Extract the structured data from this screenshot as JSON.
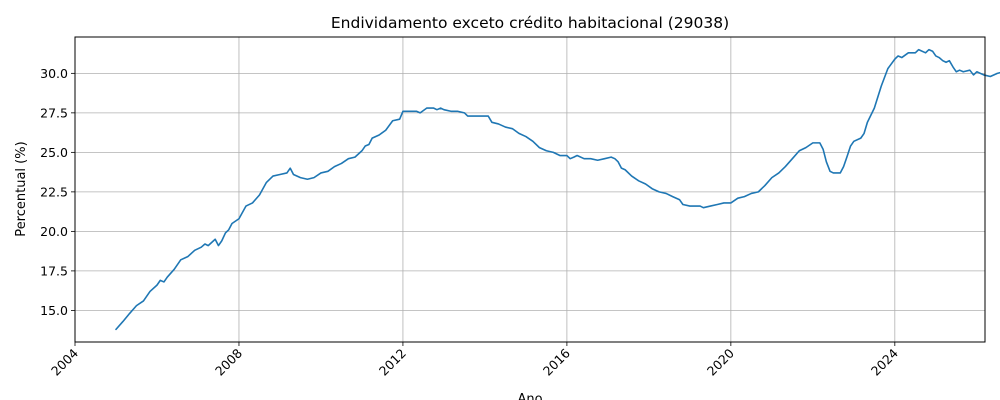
{
  "chart_data": {
    "type": "line",
    "title": "Endividamento exceto crédito habitacional (29038)",
    "xlabel": "Ano",
    "ylabel": "Percentual (%)",
    "xlim": [
      2004,
      2026.2
    ],
    "ylim": [
      13.0,
      32.3
    ],
    "x_ticks": [
      2004,
      2008,
      2012,
      2016,
      2020,
      2024
    ],
    "y_ticks": [
      15.0,
      17.5,
      20.0,
      22.5,
      25.0,
      27.5,
      30.0
    ],
    "y_tick_labels": [
      "15.0",
      "17.5",
      "20.0",
      "22.5",
      "25.0",
      "27.5",
      "30.0"
    ],
    "x_tick_labels": [
      "2004",
      "2008",
      "2012",
      "2016",
      "2020",
      "2024"
    ],
    "grid": true,
    "line_color": "#1f77b4",
    "series": [
      {
        "points": [
          [
            2005.0,
            13.8
          ],
          [
            2005.17,
            14.3
          ],
          [
            2005.33,
            14.8
          ],
          [
            2005.5,
            15.3
          ],
          [
            2005.67,
            15.6
          ],
          [
            2005.83,
            16.2
          ],
          [
            2006.0,
            16.6
          ],
          [
            2006.08,
            16.9
          ],
          [
            2006.17,
            16.8
          ],
          [
            2006.25,
            17.1
          ],
          [
            2006.42,
            17.6
          ],
          [
            2006.58,
            18.2
          ],
          [
            2006.75,
            18.4
          ],
          [
            2006.92,
            18.8
          ],
          [
            2007.08,
            19.0
          ],
          [
            2007.17,
            19.2
          ],
          [
            2007.25,
            19.1
          ],
          [
            2007.42,
            19.5
          ],
          [
            2007.5,
            19.1
          ],
          [
            2007.58,
            19.4
          ],
          [
            2007.67,
            19.9
          ],
          [
            2007.75,
            20.1
          ],
          [
            2007.83,
            20.5
          ],
          [
            2008.0,
            20.8
          ],
          [
            2008.17,
            21.6
          ],
          [
            2008.33,
            21.8
          ],
          [
            2008.5,
            22.3
          ],
          [
            2008.67,
            23.1
          ],
          [
            2008.83,
            23.5
          ],
          [
            2009.0,
            23.6
          ],
          [
            2009.17,
            23.7
          ],
          [
            2009.25,
            24.0
          ],
          [
            2009.33,
            23.6
          ],
          [
            2009.5,
            23.4
          ],
          [
            2009.67,
            23.3
          ],
          [
            2009.83,
            23.4
          ],
          [
            2010.0,
            23.7
          ],
          [
            2010.17,
            23.8
          ],
          [
            2010.33,
            24.1
          ],
          [
            2010.5,
            24.3
          ],
          [
            2010.67,
            24.6
          ],
          [
            2010.83,
            24.7
          ],
          [
            2011.0,
            25.1
          ],
          [
            2011.08,
            25.4
          ],
          [
            2011.17,
            25.5
          ],
          [
            2011.25,
            25.9
          ],
          [
            2011.42,
            26.1
          ],
          [
            2011.58,
            26.4
          ],
          [
            2011.75,
            27.0
          ],
          [
            2011.92,
            27.1
          ],
          [
            2012.0,
            27.6
          ],
          [
            2012.17,
            27.6
          ],
          [
            2012.33,
            27.6
          ],
          [
            2012.42,
            27.5
          ],
          [
            2012.58,
            27.8
          ],
          [
            2012.75,
            27.8
          ],
          [
            2012.83,
            27.7
          ],
          [
            2012.92,
            27.8
          ],
          [
            2013.0,
            27.7
          ],
          [
            2013.17,
            27.6
          ],
          [
            2013.33,
            27.6
          ],
          [
            2013.5,
            27.5
          ],
          [
            2013.58,
            27.3
          ],
          [
            2013.75,
            27.3
          ],
          [
            2013.92,
            27.3
          ],
          [
            2014.08,
            27.3
          ],
          [
            2014.17,
            26.9
          ],
          [
            2014.33,
            26.8
          ],
          [
            2014.5,
            26.6
          ],
          [
            2014.67,
            26.5
          ],
          [
            2014.83,
            26.2
          ],
          [
            2015.0,
            26.0
          ],
          [
            2015.17,
            25.7
          ],
          [
            2015.33,
            25.3
          ],
          [
            2015.5,
            25.1
          ],
          [
            2015.67,
            25.0
          ],
          [
            2015.83,
            24.8
          ],
          [
            2016.0,
            24.8
          ],
          [
            2016.08,
            24.6
          ],
          [
            2016.17,
            24.7
          ],
          [
            2016.25,
            24.8
          ],
          [
            2016.42,
            24.6
          ],
          [
            2016.58,
            24.6
          ],
          [
            2016.75,
            24.5
          ],
          [
            2016.92,
            24.6
          ],
          [
            2017.08,
            24.7
          ],
          [
            2017.17,
            24.6
          ],
          [
            2017.25,
            24.4
          ],
          [
            2017.33,
            24.0
          ],
          [
            2017.42,
            23.9
          ],
          [
            2017.58,
            23.5
          ],
          [
            2017.75,
            23.2
          ],
          [
            2017.92,
            23.0
          ],
          [
            2018.08,
            22.7
          ],
          [
            2018.25,
            22.5
          ],
          [
            2018.42,
            22.4
          ],
          [
            2018.58,
            22.2
          ],
          [
            2018.75,
            22.0
          ],
          [
            2018.83,
            21.7
          ],
          [
            2019.0,
            21.6
          ],
          [
            2019.17,
            21.6
          ],
          [
            2019.25,
            21.6
          ],
          [
            2019.33,
            21.5
          ],
          [
            2019.5,
            21.6
          ],
          [
            2019.67,
            21.7
          ],
          [
            2019.83,
            21.8
          ],
          [
            2020.0,
            21.8
          ],
          [
            2020.17,
            22.1
          ],
          [
            2020.33,
            22.2
          ],
          [
            2020.5,
            22.4
          ],
          [
            2020.67,
            22.5
          ],
          [
            2020.83,
            22.9
          ],
          [
            2021.0,
            23.4
          ],
          [
            2021.17,
            23.7
          ],
          [
            2021.33,
            24.1
          ],
          [
            2021.5,
            24.6
          ],
          [
            2021.67,
            25.1
          ],
          [
            2021.83,
            25.3
          ],
          [
            2022.0,
            25.6
          ],
          [
            2022.08,
            25.6
          ],
          [
            2022.17,
            25.6
          ],
          [
            2022.25,
            25.2
          ],
          [
            2022.33,
            24.4
          ],
          [
            2022.42,
            23.8
          ],
          [
            2022.5,
            23.7
          ],
          [
            2022.67,
            23.7
          ],
          [
            2022.75,
            24.1
          ],
          [
            2022.83,
            24.7
          ],
          [
            2022.92,
            25.4
          ],
          [
            2023.0,
            25.7
          ],
          [
            2023.17,
            25.9
          ],
          [
            2023.25,
            26.2
          ],
          [
            2023.33,
            26.9
          ],
          [
            2023.5,
            27.8
          ],
          [
            2023.67,
            29.2
          ],
          [
            2023.83,
            30.3
          ],
          [
            2024.0,
            30.9
          ],
          [
            2024.08,
            31.1
          ],
          [
            2024.17,
            31.0
          ],
          [
            2024.33,
            31.3
          ],
          [
            2024.5,
            31.3
          ],
          [
            2024.58,
            31.5
          ],
          [
            2024.75,
            31.3
          ],
          [
            2024.83,
            31.5
          ],
          [
            2024.92,
            31.4
          ],
          [
            2025.0,
            31.1
          ],
          [
            2025.08,
            31.0
          ],
          [
            2025.17,
            30.8
          ],
          [
            2025.25,
            30.7
          ],
          [
            2025.33,
            30.8
          ],
          [
            2025.42,
            30.4
          ],
          [
            2025.5,
            30.1
          ],
          [
            2025.58,
            30.2
          ],
          [
            2025.67,
            30.1
          ],
          [
            2025.83,
            30.2
          ],
          [
            2025.92,
            29.9
          ],
          [
            2026.0,
            30.1
          ],
          [
            2026.17,
            29.9
          ],
          [
            2026.33,
            29.8
          ],
          [
            2026.5,
            30.0
          ],
          [
            2026.67,
            30.1
          ],
          [
            2026.83,
            30.3
          ],
          [
            2026.92,
            30.4
          ],
          [
            2027.0,
            30.0
          ]
        ]
      }
    ]
  }
}
